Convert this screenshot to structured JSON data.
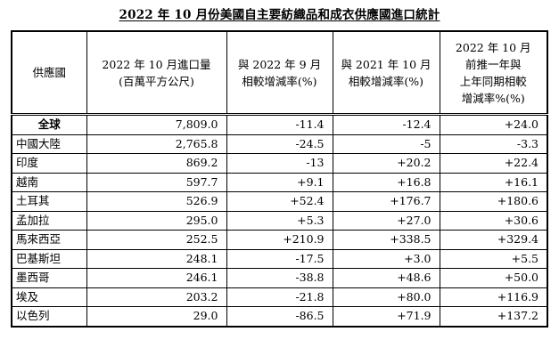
{
  "title": "2022 年 10 月份美國自主要紡織品和成衣供應國進口統計",
  "headers": [
    [
      "供應國"
    ],
    [
      "2022 年 10 月進口量",
      "(百萬平方公尺)"
    ],
    [
      "與 2022 年 9 月",
      "相較增減率(%)"
    ],
    [
      "與 2021 年 10 月",
      "相較增減率(%)"
    ],
    [
      "2022 年 10 月",
      "前推一年與",
      "上年同期相較",
      "增減率%(%)"
    ]
  ],
  "rows": [
    {
      "country": "全球",
      "volume": "7,809.0",
      "vs_prev_month": "-11.4",
      "vs_prev_year": "-12.4",
      "trailing_year": "+24.0"
    },
    {
      "country": "中國大陸",
      "volume": "2,765.8",
      "vs_prev_month": "-24.5",
      "vs_prev_year": "-5",
      "trailing_year": "-3.3"
    },
    {
      "country": "印度",
      "volume": "869.2",
      "vs_prev_month": "-13",
      "vs_prev_year": "+20.2",
      "trailing_year": "+22.4"
    },
    {
      "country": "越南",
      "volume": "597.7",
      "vs_prev_month": "+9.1",
      "vs_prev_year": "+16.8",
      "trailing_year": "+16.1"
    },
    {
      "country": "土耳其",
      "volume": "526.9",
      "vs_prev_month": "+52.4",
      "vs_prev_year": "+176.7",
      "trailing_year": "+180.6"
    },
    {
      "country": "孟加拉",
      "volume": "295.0",
      "vs_prev_month": "+5.3",
      "vs_prev_year": "+27.0",
      "trailing_year": "+30.6"
    },
    {
      "country": "馬來西亞",
      "volume": "252.5",
      "vs_prev_month": "+210.9",
      "vs_prev_year": "+338.5",
      "trailing_year": "+329.4"
    },
    {
      "country": "巴基斯坦",
      "volume": "248.1",
      "vs_prev_month": "-17.5",
      "vs_prev_year": "+3.0",
      "trailing_year": "+5.5"
    },
    {
      "country": "墨西哥",
      "volume": "246.1",
      "vs_prev_month": "-38.8",
      "vs_prev_year": "+48.6",
      "trailing_year": "+50.0"
    },
    {
      "country": "埃及",
      "volume": "203.2",
      "vs_prev_month": "-21.8",
      "vs_prev_year": "+80.0",
      "trailing_year": "+116.9"
    },
    {
      "country": "以色列",
      "volume": "29.0",
      "vs_prev_month": "-86.5",
      "vs_prev_year": "+71.9",
      "trailing_year": "+137.2"
    }
  ]
}
